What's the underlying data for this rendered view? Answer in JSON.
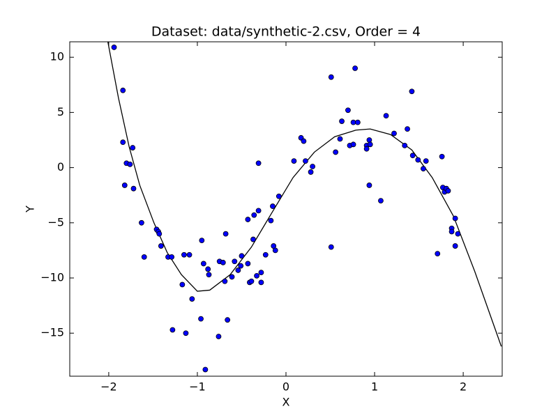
{
  "chart_data": {
    "type": "scatter",
    "title": "Dataset: data/synthetic-2.csv, Order = 4",
    "x_label": "X",
    "y_label": "Y",
    "xlim": [
      -2.44,
      2.44
    ],
    "ylim": [
      -18.9,
      11.4
    ],
    "xticks": [
      {
        "value": -2,
        "label": "−2"
      },
      {
        "value": -1,
        "label": "−1"
      },
      0,
      1,
      2
    ],
    "yticks": [
      {
        "value": -15,
        "label": "−15"
      },
      {
        "value": -10,
        "label": "−10"
      },
      {
        "value": -5,
        "label": "−5"
      },
      0,
      5,
      10
    ],
    "series": [
      {
        "type": "scatter",
        "color": "#0000ff",
        "x": [
          -1.94,
          -1.84,
          -1.84,
          -1.8,
          -1.76,
          -1.73,
          -1.82,
          -1.72,
          -1.63,
          -1.6,
          -1.46,
          -1.44,
          -1.43,
          -1.41,
          -1.33,
          -1.29,
          -1.28,
          -1.17,
          -1.15,
          -1.13,
          -1.09,
          -1.06,
          -0.95,
          -0.96,
          -0.93,
          -0.88,
          -0.87,
          -0.91,
          -0.76,
          -0.75,
          -0.71,
          -0.68,
          -0.69,
          -0.66,
          -0.61,
          -0.58,
          -0.54,
          -0.51,
          -0.5,
          -0.43,
          -0.43,
          -0.41,
          -0.39,
          -0.37,
          -0.36,
          -0.33,
          -0.31,
          -0.31,
          -0.28,
          -0.28,
          -0.23,
          -0.17,
          -0.15,
          -0.14,
          -0.12,
          -0.08,
          0.09,
          0.17,
          0.2,
          0.22,
          0.28,
          0.3,
          0.51,
          0.51,
          0.56,
          0.61,
          0.63,
          0.7,
          0.72,
          0.76,
          0.76,
          0.78,
          0.81,
          0.91,
          0.91,
          0.94,
          0.94,
          0.95,
          1.07,
          1.13,
          1.22,
          1.34,
          1.37,
          1.42,
          1.43,
          1.49,
          1.55,
          1.58,
          1.71,
          1.76,
          1.77,
          1.79,
          1.81,
          1.83,
          1.87,
          1.87,
          1.91,
          1.91,
          1.94
        ],
        "values": [
          10.9,
          7.0,
          2.3,
          0.4,
          0.3,
          1.8,
          -1.6,
          -1.9,
          -5.0,
          -8.1,
          -5.6,
          -5.8,
          -6.0,
          -7.1,
          -8.1,
          -8.1,
          -14.7,
          -10.6,
          -7.9,
          -15.0,
          -7.9,
          -11.9,
          -6.6,
          -13.7,
          -8.7,
          -9.2,
          -9.7,
          -18.3,
          -15.3,
          -8.5,
          -8.6,
          -6.0,
          -10.3,
          -13.8,
          -9.9,
          -8.5,
          -9.3,
          -8.9,
          -8.0,
          -4.7,
          -8.7,
          -10.4,
          -10.3,
          -6.5,
          -4.3,
          -9.8,
          -3.9,
          0.4,
          -9.5,
          -10.4,
          -7.9,
          -4.8,
          -3.5,
          -7.1,
          -7.5,
          -2.6,
          0.6,
          2.7,
          2.4,
          0.6,
          -0.4,
          0.1,
          8.2,
          -7.2,
          1.4,
          2.6,
          4.2,
          5.2,
          2.0,
          2.1,
          4.1,
          9.0,
          4.1,
          2.0,
          1.7,
          -1.6,
          2.5,
          2.1,
          -3.0,
          4.7,
          3.1,
          2.0,
          3.5,
          6.9,
          1.1,
          0.7,
          -0.1,
          0.6,
          -7.8,
          1.0,
          -1.8,
          -2.2,
          -1.9,
          -2.1,
          -5.5,
          -5.8,
          -4.6,
          -7.1,
          -6.0
        ]
      },
      {
        "type": "line",
        "color": "#000000",
        "x": [
          -2.01,
          -1.89,
          -1.77,
          -1.65,
          -1.49,
          -1.34,
          -1.18,
          -1.0,
          -0.86,
          -0.63,
          -0.39,
          -0.16,
          0.08,
          0.32,
          0.55,
          0.79,
          0.95,
          1.18,
          1.42,
          1.65,
          1.89,
          2.13,
          2.43
        ],
        "values": [
          11.4,
          6.3,
          1.9,
          -1.6,
          -5.0,
          -7.7,
          -9.7,
          -11.2,
          -11.1,
          -9.7,
          -7.2,
          -4.1,
          -0.9,
          1.4,
          2.8,
          3.4,
          3.5,
          3.0,
          1.6,
          -0.9,
          -4.4,
          -9.4,
          -16.2
        ]
      }
    ]
  }
}
